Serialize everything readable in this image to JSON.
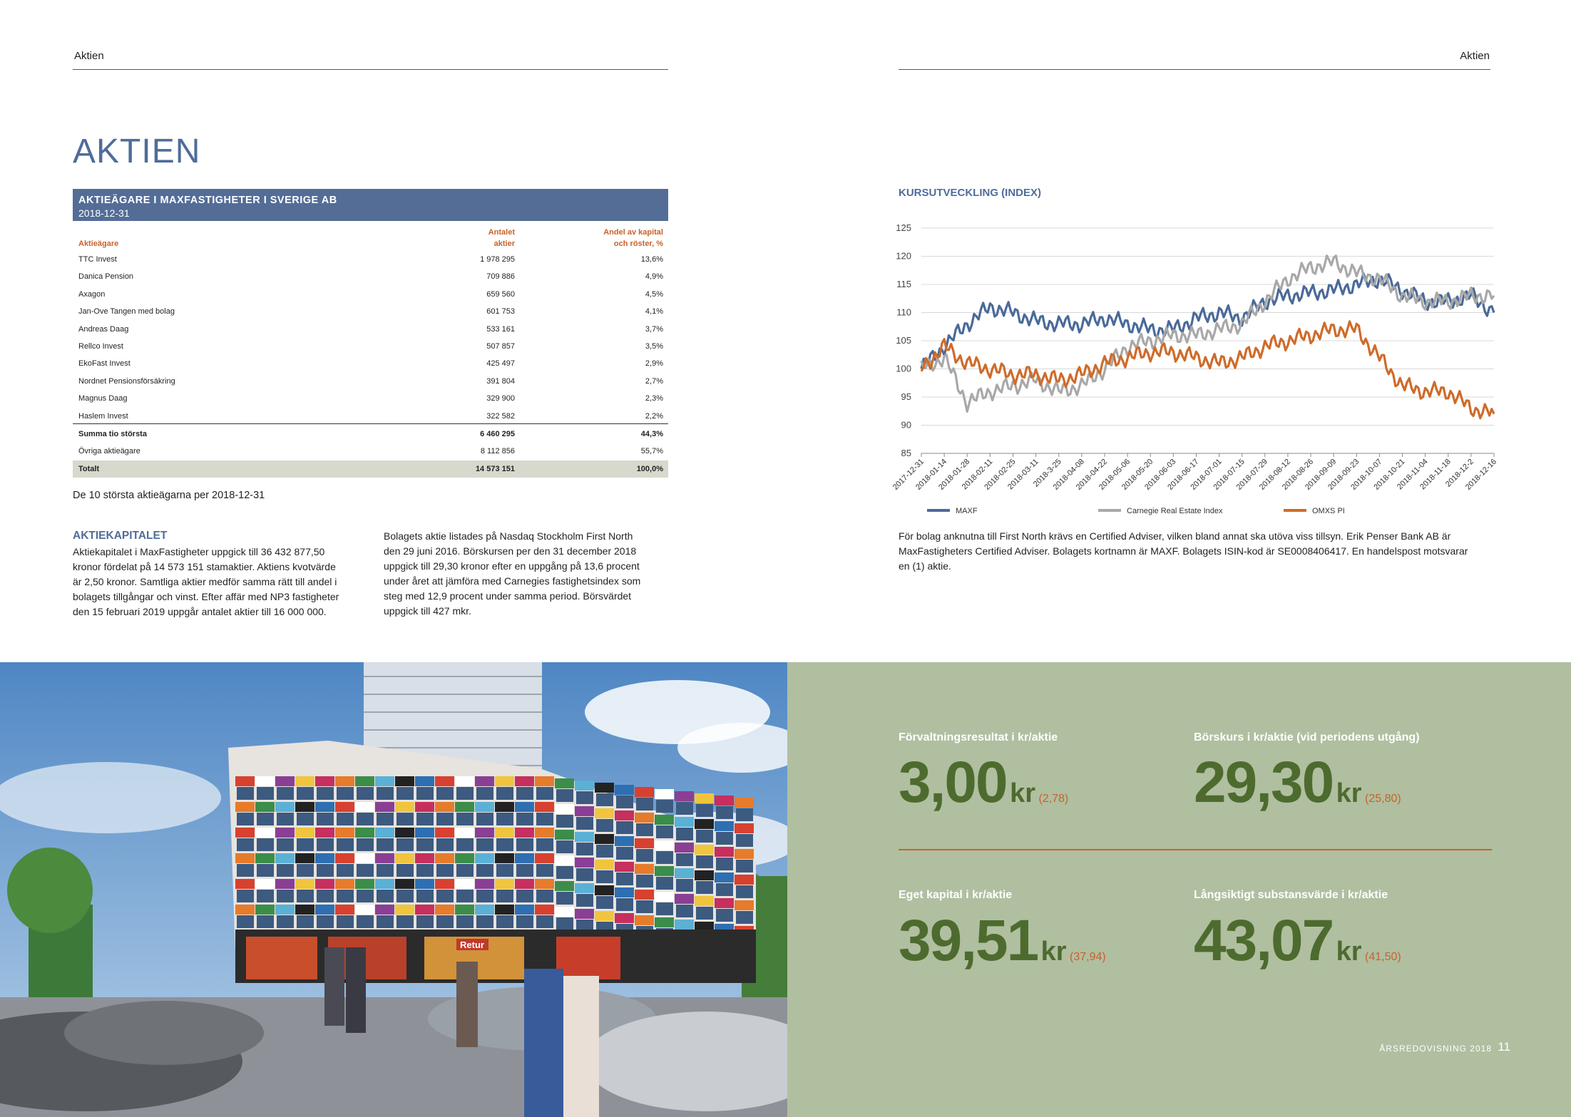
{
  "header": {
    "left_label": "Aktien",
    "right_label": "Aktien"
  },
  "page_title": "AKTIEN",
  "shareholders_table": {
    "title": "AKTIEÄGARE I MAXFASTIGHETER I SVERIGE AB",
    "date": "2018-12-31",
    "col_owner": "Aktieägare",
    "col_shares_1": "Antalet",
    "col_shares_2": "aktier",
    "col_share_1": "Andel av kapital",
    "col_share_2": "och röster, %",
    "rows": [
      {
        "name": "TTC Invest",
        "shares": "1 978 295",
        "pct": "13,6%"
      },
      {
        "name": "Danica Pension",
        "shares": "709 886",
        "pct": "4,9%"
      },
      {
        "name": "Axagon",
        "shares": "659 560",
        "pct": "4,5%"
      },
      {
        "name": "Jan-Ove Tangen med bolag",
        "shares": "601 753",
        "pct": "4,1%"
      },
      {
        "name": "Andreas Daag",
        "shares": "533 161",
        "pct": "3,7%"
      },
      {
        "name": "Rellco Invest",
        "shares": "507 857",
        "pct": "3,5%"
      },
      {
        "name": "EkoFast Invest",
        "shares": "425 497",
        "pct": "2,9%"
      },
      {
        "name": "Nordnet Pensionsförsäkring",
        "shares": "391 804",
        "pct": "2,7%"
      },
      {
        "name": "Magnus Daag",
        "shares": "329 900",
        "pct": "2,3%"
      },
      {
        "name": "Haslem Invest",
        "shares": "322 582",
        "pct": "2,2%"
      }
    ],
    "sum": {
      "name": "Summa tio största",
      "shares": "6 460 295",
      "pct": "44,3%"
    },
    "other": {
      "name": "Övriga aktieägare",
      "shares": "8 112 856",
      "pct": "55,7%"
    },
    "total": {
      "name": "Totalt",
      "shares": "14 573 151",
      "pct": "100,0%"
    },
    "caption": "De 10 största aktieägarna per 2018-12-31"
  },
  "aktiekapitalet": {
    "title": "AKTIEKAPITALET",
    "lines_col1": [
      "Aktiekapitalet i MaxFastigheter uppgick till 36 432 877,50",
      "kronor fördelat på 14 573 151 stamaktier. Aktiens kvotvärde",
      "är 2,50 kronor. Samtliga aktier medför samma rätt till andel i",
      "bolagets tillgångar och vinst. Efter affär med NP3 fastigheter",
      "den 15 februari 2019 uppgår antalet aktier till 16 000 000."
    ],
    "lines_col2": [
      "Bolagets aktie listades på Nasdaq Stockholm First North",
      "den 29 juni 2016. Börskursen per den 31 december 2018",
      "uppgick till 29,30 kronor efter en uppgång på 13,6 procent",
      "under året att jämföra med Carnegies fastighetsindex som",
      "steg med 12,9 procent under samma period. Börsvärdet",
      "uppgick till 427 mkr."
    ]
  },
  "chart_title": "KURSUTVECKLING (INDEX)",
  "chart_data": {
    "type": "line",
    "title": "KURSUTVECKLING (INDEX)",
    "ylim": [
      85,
      125
    ],
    "yticks": [
      85,
      90,
      95,
      100,
      105,
      110,
      115,
      120,
      125
    ],
    "x": [
      "2017-12-31",
      "2018-01-14",
      "2018-01-28",
      "2018-02-11",
      "2018-02-25",
      "2018-03-11",
      "2018-3-25",
      "2018-04-08",
      "2018-04-22",
      "2018-05-06",
      "2018-05-20",
      "2018-06-03",
      "2018-06-17",
      "2018-07-01",
      "2018-07-15",
      "2018-07-29",
      "2018-08-12",
      "2018-08-26",
      "2018-09-09",
      "2018-09-23",
      "2018-10-07",
      "2018-10-21",
      "2018-11-04",
      "2018-11-18",
      "2018-12-2",
      "2018-12-16"
    ],
    "series": [
      {
        "name": "MAXF",
        "color": "#4a6a9a",
        "values": [
          100,
          104,
          108,
          111,
          110,
          108.5,
          108,
          108,
          109,
          108,
          107,
          107,
          109,
          110,
          109,
          112,
          113,
          113.5,
          114,
          115,
          116,
          114,
          112,
          112,
          113,
          110
        ]
      },
      {
        "name": "Carnegie Real Estate Index",
        "color": "#a8a8a8",
        "values": [
          100,
          102,
          94,
          96,
          97,
          98,
          96,
          97,
          100,
          104,
          105,
          106,
          106,
          107,
          108,
          112,
          116,
          118,
          119,
          117,
          116,
          113,
          112,
          112,
          113,
          113
        ]
      },
      {
        "name": "OMXS PI",
        "color": "#cf6b2a",
        "values": [
          100,
          104,
          101,
          100,
          99,
          99,
          98,
          99,
          101,
          102,
          103,
          103,
          102,
          101,
          102,
          104,
          105,
          106,
          107,
          107,
          102,
          97,
          96,
          96,
          93,
          92
        ]
      }
    ]
  },
  "chart_note": [
    "För bolag anknutna till First North krävs en Certified Adviser, vilken bland annat ska utöva viss tillsyn. Erik Penser Bank AB är",
    "MaxFastigheters Certified Adviser. Bolagets kortnamn är MAXF. Bolagets ISIN-kod är SE0008406417. En handelspost motsvarar",
    "en (1) aktie."
  ],
  "photo": {
    "store_sign": "Retur"
  },
  "kpis": {
    "forvaltning": {
      "label": "Förvaltningsresultat i kr/aktie",
      "value": "3,00",
      "unit": "kr",
      "prev": "(2,78)"
    },
    "borskurs": {
      "label": "Börskurs i kr/aktie (vid periodens utgång)",
      "value": "29,30",
      "unit": "kr",
      "prev": "(25,80)"
    },
    "eget_kapital": {
      "label": "Eget kapital i kr/aktie",
      "value": "39,51",
      "unit": "kr",
      "prev": "(37,94)"
    },
    "substans": {
      "label": "Långsiktigt substansvärde i kr/aktie",
      "value": "43,07",
      "unit": "kr",
      "prev": "(41,50)"
    }
  },
  "footer": {
    "label": "ÅRSREDOVISNING 2018",
    "page": "11"
  },
  "colors": {
    "accent_blue": "#536d97",
    "accent_orange": "#c8622b",
    "panel_green": "#b0bfa0",
    "kpi_green": "#4d6b2e"
  }
}
